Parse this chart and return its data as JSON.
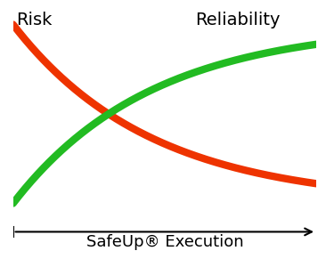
{
  "risk_color": "#EE3300",
  "reliability_color": "#22BB22",
  "background_color": "#ffffff",
  "risk_label": "Risk",
  "reliability_label": "Reliability",
  "xlabel": "SafeUp® Execution",
  "line_width": 6,
  "label_fontsize": 14,
  "xlabel_fontsize": 13,
  "decay_rate": 2.2
}
